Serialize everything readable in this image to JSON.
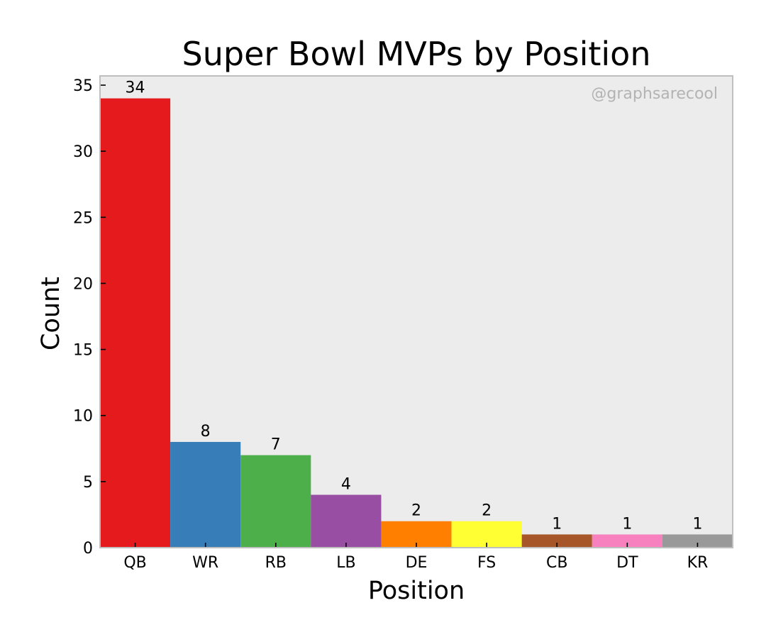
{
  "chart_data": {
    "type": "bar",
    "title": "Super Bowl MVPs by Position",
    "xlabel": "Position",
    "ylabel": "Count",
    "watermark": "@graphsarecool",
    "categories": [
      "QB",
      "WR",
      "RB",
      "LB",
      "DE",
      "FS",
      "CB",
      "DT",
      "KR"
    ],
    "values": [
      34,
      8,
      7,
      4,
      2,
      2,
      1,
      1,
      1
    ],
    "colors": [
      "#e41a1c",
      "#377eb8",
      "#4daf4a",
      "#984ea3",
      "#ff7f00",
      "#ffff33",
      "#a65628",
      "#f781bf",
      "#999999"
    ],
    "ylim": [
      0,
      35.7
    ],
    "yticks": [
      0,
      5,
      10,
      15,
      20,
      25,
      30,
      35
    ],
    "data_labels": true,
    "grid": false,
    "legend": "none",
    "plot_background": "#ececec",
    "frame_color": "#bfbfbf"
  }
}
